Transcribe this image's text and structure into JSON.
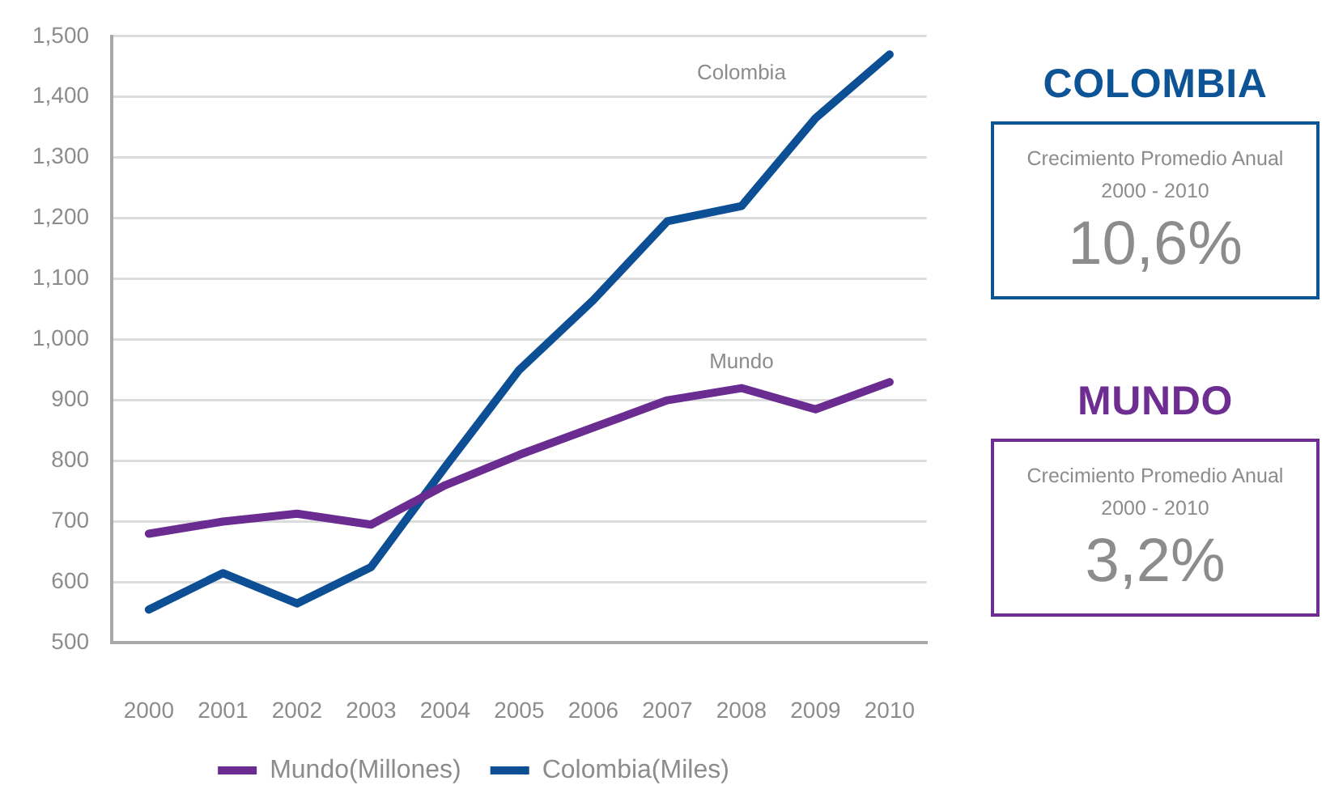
{
  "chart_data": [
    {
      "type": "line",
      "categories": [
        "2000",
        "2001",
        "2002",
        "2003",
        "2004",
        "2005",
        "2006",
        "2007",
        "2008",
        "2009",
        "2010"
      ],
      "series": [
        {
          "name": "Mundo(Millones)",
          "color": "#6a2c91",
          "values": [
            680,
            700,
            713,
            695,
            760,
            810,
            855,
            900,
            920,
            885,
            930
          ]
        },
        {
          "name": "Colombia(Miles)",
          "color": "#0d4f94",
          "values": [
            555,
            615,
            565,
            625,
            790,
            950,
            1065,
            1195,
            1220,
            1365,
            1470
          ]
        }
      ],
      "ylim": [
        500,
        1500
      ],
      "yticks": [
        500,
        600,
        700,
        800,
        900,
        {
          "value": 1000,
          "label": "1,000"
        },
        {
          "value": 1100,
          "label": "1,100"
        },
        {
          "value": 1200,
          "label": "1,200"
        },
        {
          "value": 1300,
          "label": "1,300"
        },
        {
          "value": 1400,
          "label": "1,400"
        },
        {
          "value": 1500,
          "label": "1,500"
        }
      ],
      "grid": "y",
      "legend": "bottom",
      "marker": "none",
      "line_style": "solid",
      "annotations": [
        "Mundo",
        "Colombia"
      ]
    },
    {
      "type": "other",
      "title": "COLOMBIA",
      "color": "#0d5497",
      "annotations": [
        "Crecimiento Promedio Anual",
        "2000 - 2010",
        "10,6%"
      ]
    },
    {
      "type": "other",
      "title": "MUNDO",
      "color": "#6d2d91",
      "annotations": [
        "Crecimiento Promedio Anual",
        "2000 - 2010",
        "3,2%"
      ]
    }
  ]
}
